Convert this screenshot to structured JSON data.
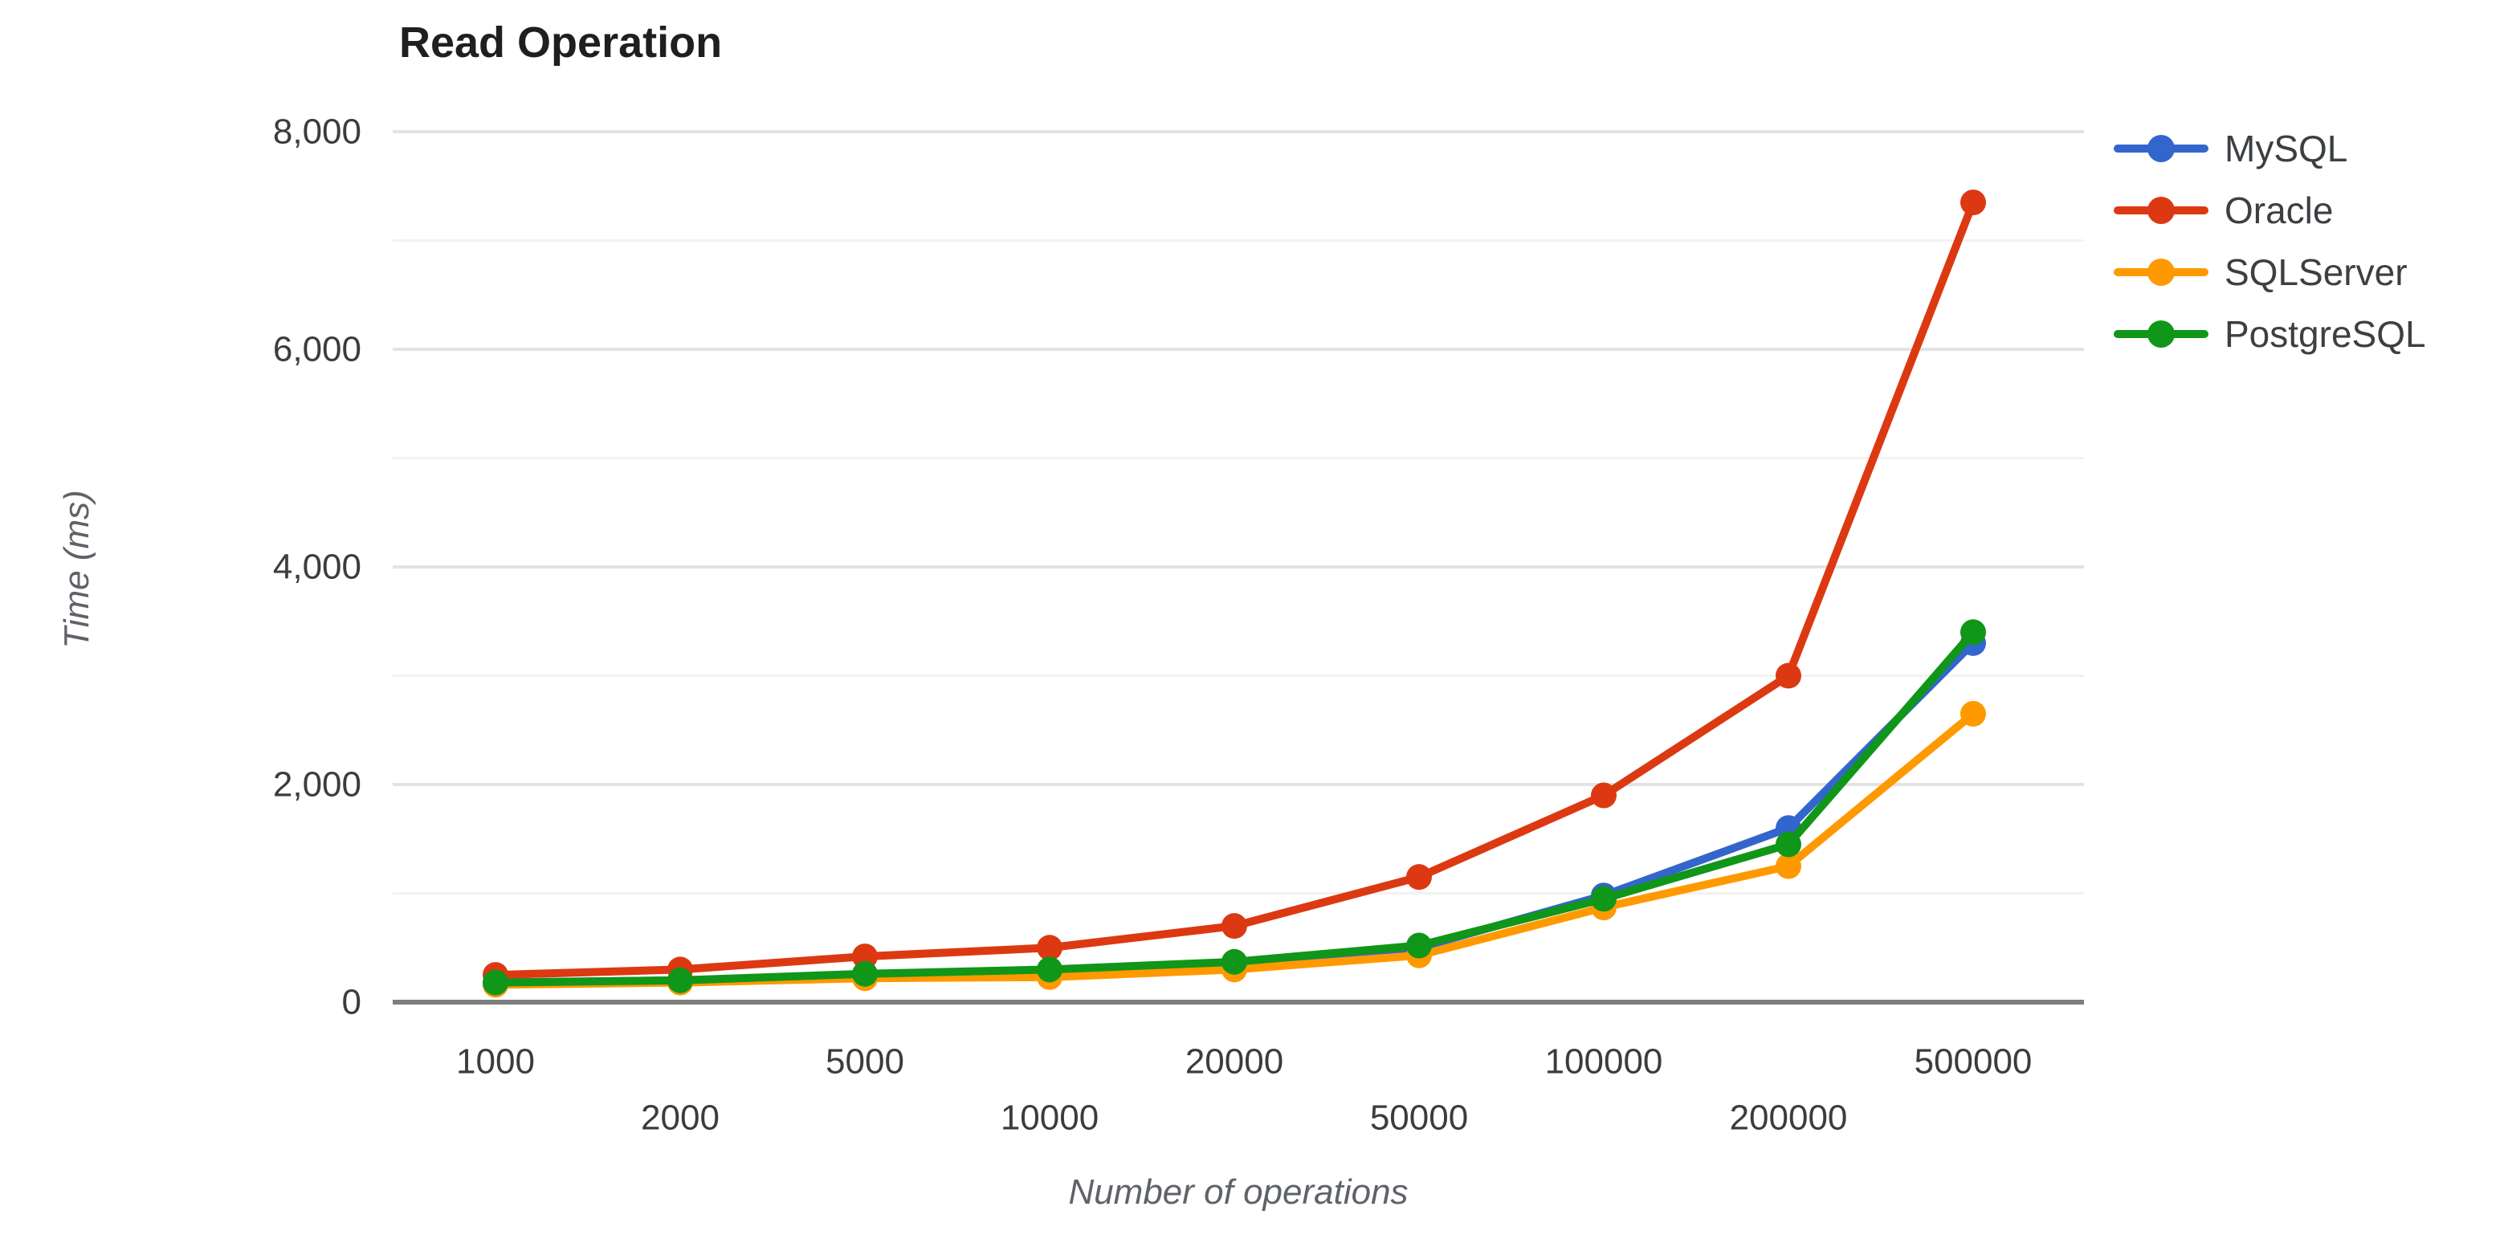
{
  "page": {
    "background": "#ffffff"
  },
  "chart_data": {
    "type": "line",
    "title": "Read Operation",
    "xlabel": "Number of operations",
    "ylabel": "Time (ms)",
    "categories": [
      1000,
      2000,
      5000,
      10000,
      20000,
      50000,
      100000,
      200000,
      500000
    ],
    "series": [
      {
        "name": "MySQL",
        "color": "#3366CC",
        "values": [
          180,
          200,
          250,
          280,
          340,
          500,
          980,
          1600,
          3300
        ]
      },
      {
        "name": "Oracle",
        "color": "#DC3912",
        "values": [
          250,
          300,
          420,
          500,
          700,
          1150,
          1900,
          3000,
          7350
        ]
      },
      {
        "name": "SQLServer",
        "color": "#FF9900",
        "values": [
          160,
          180,
          220,
          230,
          300,
          430,
          870,
          1250,
          2650
        ]
      },
      {
        "name": "PostgreSQL",
        "color": "#109618",
        "values": [
          180,
          200,
          260,
          300,
          370,
          520,
          950,
          1450,
          3400
        ]
      }
    ],
    "ylim": [
      0,
      8000
    ],
    "y_ticks": [
      0,
      2000,
      4000,
      6000,
      8000
    ],
    "y_tick_labels": [
      "0",
      "2,000",
      "4,000",
      "6,000",
      "8,000"
    ],
    "minor_grid_step": 1000,
    "grid": true,
    "legend_position": "right",
    "x_label_layout": "staggered-two-rows"
  },
  "style_colors": {
    "grid_major": "#e3e3e3",
    "grid_minor": "#f2f2f2",
    "axis_line": "#7f7f7f",
    "tick_text": "#3c3c3c"
  }
}
